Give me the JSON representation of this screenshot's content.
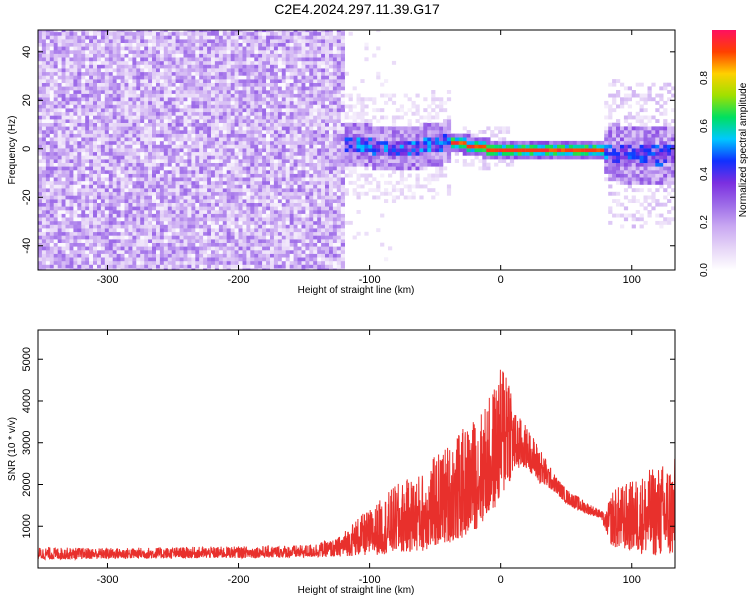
{
  "title": "C2E4.2024.297.11.39.G17",
  "colors": {
    "snr_line": "#e8302c",
    "spectrogram_noise": "#7b2fe0",
    "spectrogram_ridge": "#ff2020",
    "background": "#ffffff"
  },
  "chart_data": [
    {
      "type": "heatmap",
      "xlabel": "Height of straight line (km)",
      "ylabel": "Frequency (Hz)",
      "xlim": [
        -353,
        133
      ],
      "ylim": [
        -50,
        49
      ],
      "x_ticks": [
        -300,
        -200,
        -100,
        0,
        100
      ],
      "y_ticks": [
        -40,
        -20,
        0,
        20,
        40
      ],
      "colorbar": {
        "label": "Normalized spectral amplitude",
        "range": [
          0,
          1
        ],
        "ticks": [
          "0.0",
          "0.2",
          "0.4",
          "0.6",
          "0.8"
        ],
        "colormap": [
          "#ffffff",
          "#e6d5f7",
          "#c9a8f2",
          "#9d6be8",
          "#7b2fe0",
          "#1030ff",
          "#00c8ff",
          "#00e060",
          "#a0e000",
          "#ffd000",
          "#ff4000",
          "#ff1060"
        ]
      },
      "regions": [
        {
          "x_range": [
            -353,
            -121
          ],
          "freq_spread": [
            -50,
            49
          ],
          "amplitude": [
            0.05,
            0.25
          ],
          "description_level": "broadband noise"
        },
        {
          "x_range": [
            -121,
            -40
          ],
          "freq_center": 2,
          "freq_spread": [
            -10,
            10
          ],
          "amplitude": [
            0.15,
            0.45
          ]
        },
        {
          "x_range": [
            -40,
            76
          ],
          "freq_center": [
            3,
            0
          ],
          "amplitude": [
            0.75,
            0.95
          ]
        },
        {
          "x_range": [
            82,
            133
          ],
          "freq_center": -2,
          "freq_spread": [
            -25,
            25
          ],
          "amplitude": [
            0.15,
            0.45
          ]
        }
      ],
      "ridge": {
        "x": [
          -121,
          -100,
          -80,
          -60,
          -50,
          -40,
          -30,
          -20,
          -10,
          0,
          10,
          30,
          50,
          70,
          76,
          80,
          90,
          110,
          133
        ],
        "freq": [
          2,
          1,
          0,
          1,
          2,
          3,
          2,
          1,
          0,
          0,
          0,
          0,
          0,
          0,
          0,
          -1,
          -2,
          -3,
          -2
        ]
      }
    },
    {
      "type": "line",
      "xlabel": "Height of straight line (km)",
      "ylabel": "SNR (10 * v/v)",
      "xlim": [
        -353,
        133
      ],
      "ylim": [
        0,
        5700
      ],
      "x_ticks": [
        -300,
        -200,
        -100,
        0,
        100
      ],
      "y_ticks": [
        1000,
        2000,
        3000,
        4000,
        5000
      ],
      "series": [
        {
          "x": [
            -353,
            -300,
            -250,
            -200,
            -150,
            -125,
            -110,
            -100,
            -80,
            -60,
            -50,
            -40,
            -30,
            -20,
            -10,
            0,
            5,
            10,
            20,
            30,
            40,
            50,
            60,
            70,
            76,
            80,
            85,
            100,
            115,
            133
          ],
          "y_envelope": [
            500,
            480,
            500,
            520,
            550,
            700,
            1200,
            1400,
            2000,
            2300,
            2700,
            3000,
            3300,
            3600,
            4000,
            4800,
            5600,
            3800,
            3400,
            2900,
            2300,
            1900,
            1700,
            1500,
            1400,
            1300,
            1900,
            2100,
            2400,
            2650
          ],
          "y_floor": [
            200,
            220,
            230,
            240,
            250,
            270,
            300,
            300,
            350,
            400,
            500,
            600,
            700,
            900,
            1200,
            1600,
            1900,
            2300,
            2400,
            2000,
            1850,
            1550,
            1350,
            1250,
            1200,
            900,
            500,
            400,
            300,
            250
          ]
        }
      ]
    }
  ]
}
